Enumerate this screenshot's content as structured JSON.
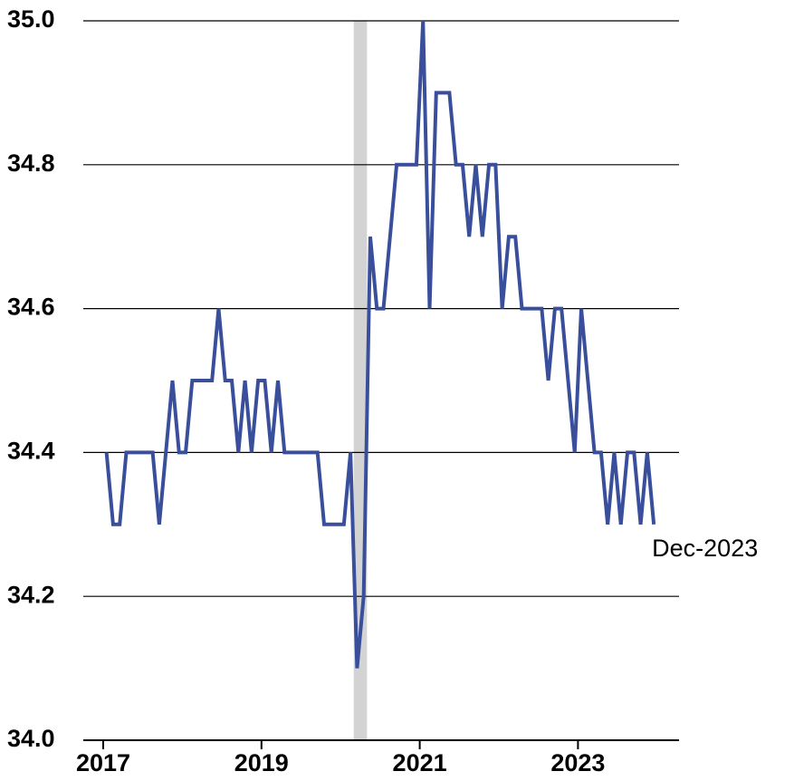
{
  "chart_data": {
    "type": "line",
    "x": [
      "2017-01",
      "2017-02",
      "2017-03",
      "2017-04",
      "2017-05",
      "2017-06",
      "2017-07",
      "2017-08",
      "2017-09",
      "2017-10",
      "2017-11",
      "2017-12",
      "2018-01",
      "2018-02",
      "2018-03",
      "2018-04",
      "2018-05",
      "2018-06",
      "2018-07",
      "2018-08",
      "2018-09",
      "2018-10",
      "2018-11",
      "2018-12",
      "2019-01",
      "2019-02",
      "2019-03",
      "2019-04",
      "2019-05",
      "2019-06",
      "2019-07",
      "2019-08",
      "2019-09",
      "2019-10",
      "2019-11",
      "2019-12",
      "2020-01",
      "2020-02",
      "2020-03",
      "2020-04",
      "2020-05",
      "2020-06",
      "2020-07",
      "2020-08",
      "2020-09",
      "2020-10",
      "2020-11",
      "2020-12",
      "2021-01",
      "2021-02",
      "2021-03",
      "2021-04",
      "2021-05",
      "2021-06",
      "2021-07",
      "2021-08",
      "2021-09",
      "2021-10",
      "2021-11",
      "2021-12",
      "2022-01",
      "2022-02",
      "2022-03",
      "2022-04",
      "2022-05",
      "2022-06",
      "2022-07",
      "2022-08",
      "2022-09",
      "2022-10",
      "2022-11",
      "2022-12",
      "2023-01",
      "2023-02",
      "2023-03",
      "2023-04",
      "2023-05",
      "2023-06",
      "2023-07",
      "2023-08",
      "2023-09",
      "2023-10",
      "2023-11",
      "2023-12"
    ],
    "series": [
      {
        "color": "#3a4f9b",
        "values": [
          34.4,
          34.3,
          34.3,
          34.4,
          34.4,
          34.4,
          34.4,
          34.4,
          34.3,
          34.4,
          34.5,
          34.4,
          34.4,
          34.5,
          34.5,
          34.5,
          34.5,
          34.6,
          34.5,
          34.5,
          34.4,
          34.5,
          34.4,
          34.5,
          34.5,
          34.4,
          34.5,
          34.4,
          34.4,
          34.4,
          34.4,
          34.4,
          34.4,
          34.3,
          34.3,
          34.3,
          34.3,
          34.4,
          34.1,
          34.2,
          34.7,
          34.6,
          34.6,
          34.7,
          34.8,
          34.8,
          34.8,
          34.8,
          35.0,
          34.6,
          34.9,
          34.9,
          34.9,
          34.8,
          34.8,
          34.7,
          34.8,
          34.7,
          34.8,
          34.8,
          34.6,
          34.7,
          34.7,
          34.6,
          34.6,
          34.6,
          34.6,
          34.5,
          34.6,
          34.6,
          34.5,
          34.4,
          34.6,
          34.5,
          34.4,
          34.4,
          34.3,
          34.4,
          34.3,
          34.4,
          34.4,
          34.3,
          34.4,
          34.3
        ]
      }
    ],
    "end_label": "Dec-2023",
    "highlight": {
      "start": "2020-03",
      "end": "2020-04",
      "color": "#d3d3d3"
    },
    "xlim": [
      2016.85,
      2024.3
    ],
    "xticks": [
      2017,
      2019,
      2021,
      2023
    ],
    "ylim": [
      34.0,
      35.0
    ],
    "yticks": [
      {
        "value": 34.0,
        "label": "34.0"
      },
      34.2,
      34.4,
      34.6,
      34.8,
      {
        "value": 35.0,
        "label": "35.0"
      }
    ],
    "grid": true
  }
}
